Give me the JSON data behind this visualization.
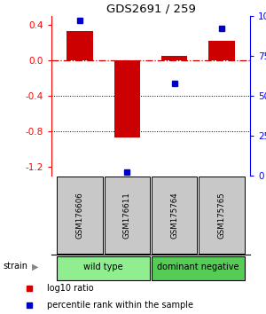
{
  "title": "GDS2691 / 259",
  "samples": [
    "GSM176606",
    "GSM176611",
    "GSM175764",
    "GSM175765"
  ],
  "log10_ratio": [
    0.33,
    -0.87,
    0.05,
    0.22
  ],
  "percentile_rank": [
    97,
    2,
    58,
    92
  ],
  "groups": [
    {
      "label": "wild type",
      "samples": [
        0,
        1
      ],
      "color": "#90EE90"
    },
    {
      "label": "dominant negative",
      "samples": [
        2,
        3
      ],
      "color": "#55CC55"
    }
  ],
  "ylim": [
    -1.3,
    0.5
  ],
  "yticks_left": [
    -1.2,
    -0.8,
    -0.4,
    0.0,
    0.4
  ],
  "yticks_right": [
    0,
    25,
    50,
    75,
    100
  ],
  "bar_color": "#CC0000",
  "dot_color": "#0000CC",
  "hline_color": "#CC0000",
  "grid_color": "#000000",
  "bg_color": "#FFFFFF",
  "strain_label": "strain",
  "legend_bar": "log10 ratio",
  "legend_dot": "percentile rank within the sample"
}
